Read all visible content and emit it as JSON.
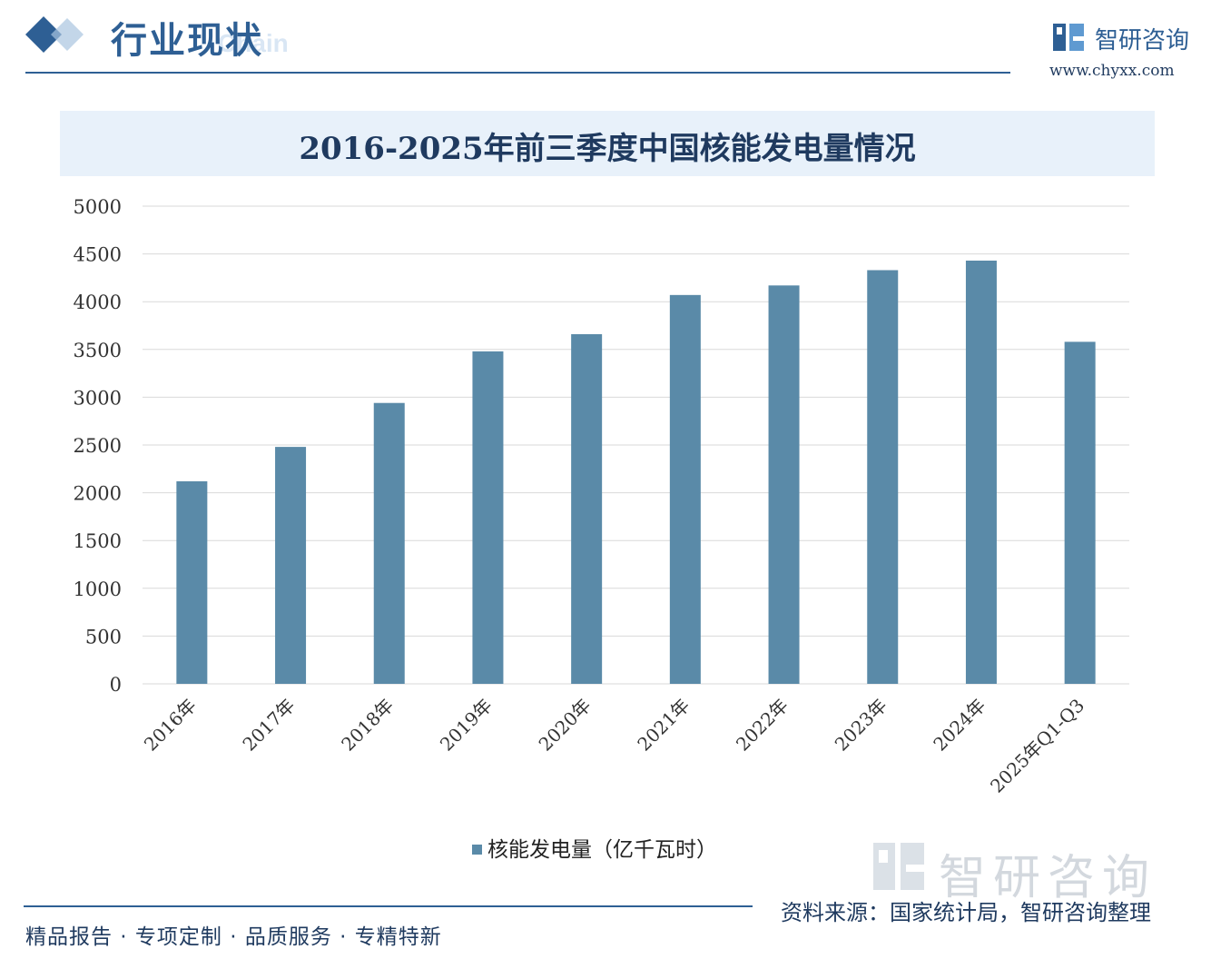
{
  "header": {
    "section_title": "行业现状",
    "ghost_subtitle": "Chain",
    "brand_name": "智研咨询",
    "brand_url": "www.chyxx.com"
  },
  "chart_data": {
    "type": "bar",
    "title": "2016-2025年前三季度中国核能发电量情况",
    "categories": [
      "2016年",
      "2017年",
      "2018年",
      "2019年",
      "2020年",
      "2021年",
      "2022年",
      "2023年",
      "2024年",
      "2025年Q1-Q3"
    ],
    "series": [
      {
        "name": "核能发电量（亿千瓦时）",
        "values": [
          2120,
          2480,
          2940,
          3480,
          3660,
          4070,
          4170,
          4330,
          4430,
          3580
        ]
      }
    ],
    "ylim": [
      0,
      5000
    ],
    "yticks": [
      0,
      500,
      1000,
      1500,
      2000,
      2500,
      3000,
      3500,
      4000,
      4500,
      5000
    ],
    "grid": true,
    "legend": "bottom",
    "bar_color": "#5a8aa8"
  },
  "footer": {
    "tagline": "精品报告 · 专项定制 · 品质服务 · 专精特新",
    "source": "资料来源：国家统计局，智研咨询整理",
    "watermark": "智研咨询"
  },
  "colors": {
    "accent": "#2e5f94",
    "band": "#e8f1fa",
    "grid": "#d9d9d9"
  }
}
